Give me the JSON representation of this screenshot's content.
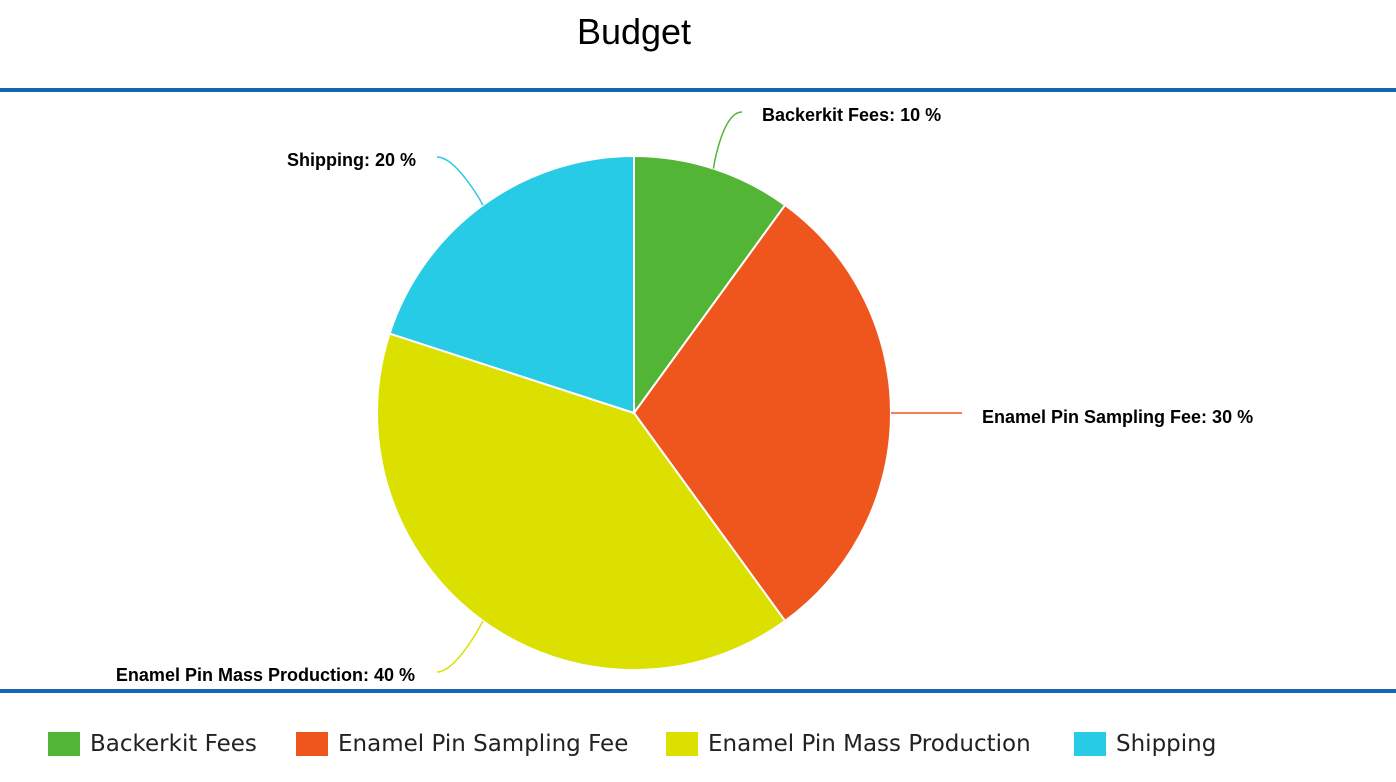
{
  "chart_data": {
    "type": "pie",
    "title": "Budget",
    "categories": [
      "Backerkit Fees",
      "Enamel Pin Sampling Fee",
      "Enamel Pin Mass Production",
      "Shipping"
    ],
    "values": [
      10,
      30,
      40,
      20
    ],
    "unit": "%",
    "colors": [
      "#52b535",
      "#ee561e",
      "#dbe000",
      "#27cbe5"
    ],
    "slice_labels": [
      "Backerkit Fees: 10 %",
      "Enamel Pin Sampling Fee: 30 %",
      "Enamel Pin Mass Production: 40 %",
      "Shipping: 20 %"
    ],
    "legend_placement": "bottom",
    "legend": [
      {
        "label": "Backerkit Fees",
        "color": "#52b535"
      },
      {
        "label": "Enamel Pin Sampling Fee",
        "color": "#ee561e"
      },
      {
        "label": "Enamel Pin Mass Production",
        "color": "#dbe000"
      },
      {
        "label": "Shipping",
        "color": "#27cbe5"
      }
    ],
    "start_angle_deg": 0,
    "direction": "clockwise"
  },
  "colors": {
    "rule": "#1565b3",
    "background": "#ffffff"
  }
}
